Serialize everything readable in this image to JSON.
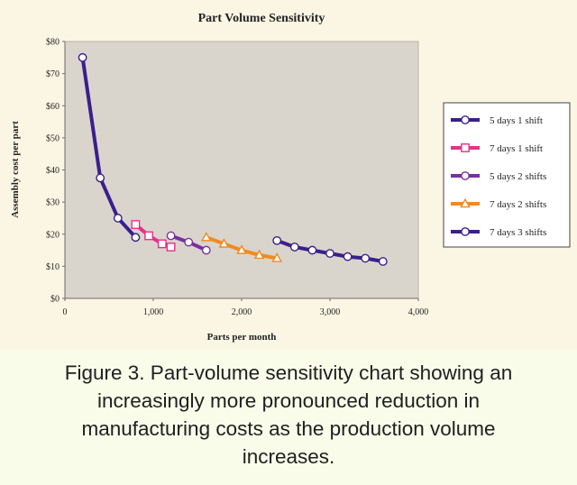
{
  "chart_data": {
    "type": "line",
    "title": "Part Volume Sensitivity",
    "xlabel": "Parts per month",
    "ylabel": "Assembly cost per part",
    "xlim": [
      0,
      4000
    ],
    "ylim": [
      0,
      80
    ],
    "x_ticks": [
      "0",
      "1,000",
      "2,000",
      "3,000",
      "4,000"
    ],
    "y_ticks": [
      "$0",
      "$10",
      "$20",
      "$30",
      "$40",
      "$50",
      "$60",
      "$70",
      "$80"
    ],
    "grid": false,
    "legend_position": "right",
    "series": [
      {
        "name": "5 days 1 shift",
        "color": "#3a1f8c",
        "marker": "circle",
        "points": [
          [
            200,
            75
          ],
          [
            400,
            37.5
          ],
          [
            600,
            25
          ],
          [
            800,
            19
          ]
        ]
      },
      {
        "name": "7 days 1 shift",
        "color": "#e8308a",
        "marker": "square",
        "points": [
          [
            800,
            23
          ],
          [
            950,
            19.5
          ],
          [
            1100,
            17
          ],
          [
            1200,
            16
          ]
        ]
      },
      {
        "name": "5 days 2 shifts",
        "color": "#7a2f9e",
        "marker": "circle",
        "points": [
          [
            1200,
            19.5
          ],
          [
            1400,
            17.5
          ],
          [
            1600,
            15
          ]
        ]
      },
      {
        "name": "7 days 2 shifts",
        "color": "#f08a24",
        "marker": "triangle",
        "points": [
          [
            1600,
            19
          ],
          [
            1800,
            17
          ],
          [
            2000,
            15
          ],
          [
            2200,
            13.5
          ],
          [
            2400,
            12.5
          ]
        ]
      },
      {
        "name": "7 days 3 shifts",
        "color": "#3a1f8c",
        "marker": "circle",
        "points": [
          [
            2400,
            18
          ],
          [
            2600,
            16
          ],
          [
            2800,
            15
          ],
          [
            3000,
            14
          ],
          [
            3200,
            13
          ],
          [
            3400,
            12.5
          ],
          [
            3600,
            11.5
          ]
        ]
      }
    ]
  },
  "caption": "Figure 3. Part-volume sensitivity chart showing an increasingly more pronounced reduction in manufacturing costs as the production volume increases."
}
